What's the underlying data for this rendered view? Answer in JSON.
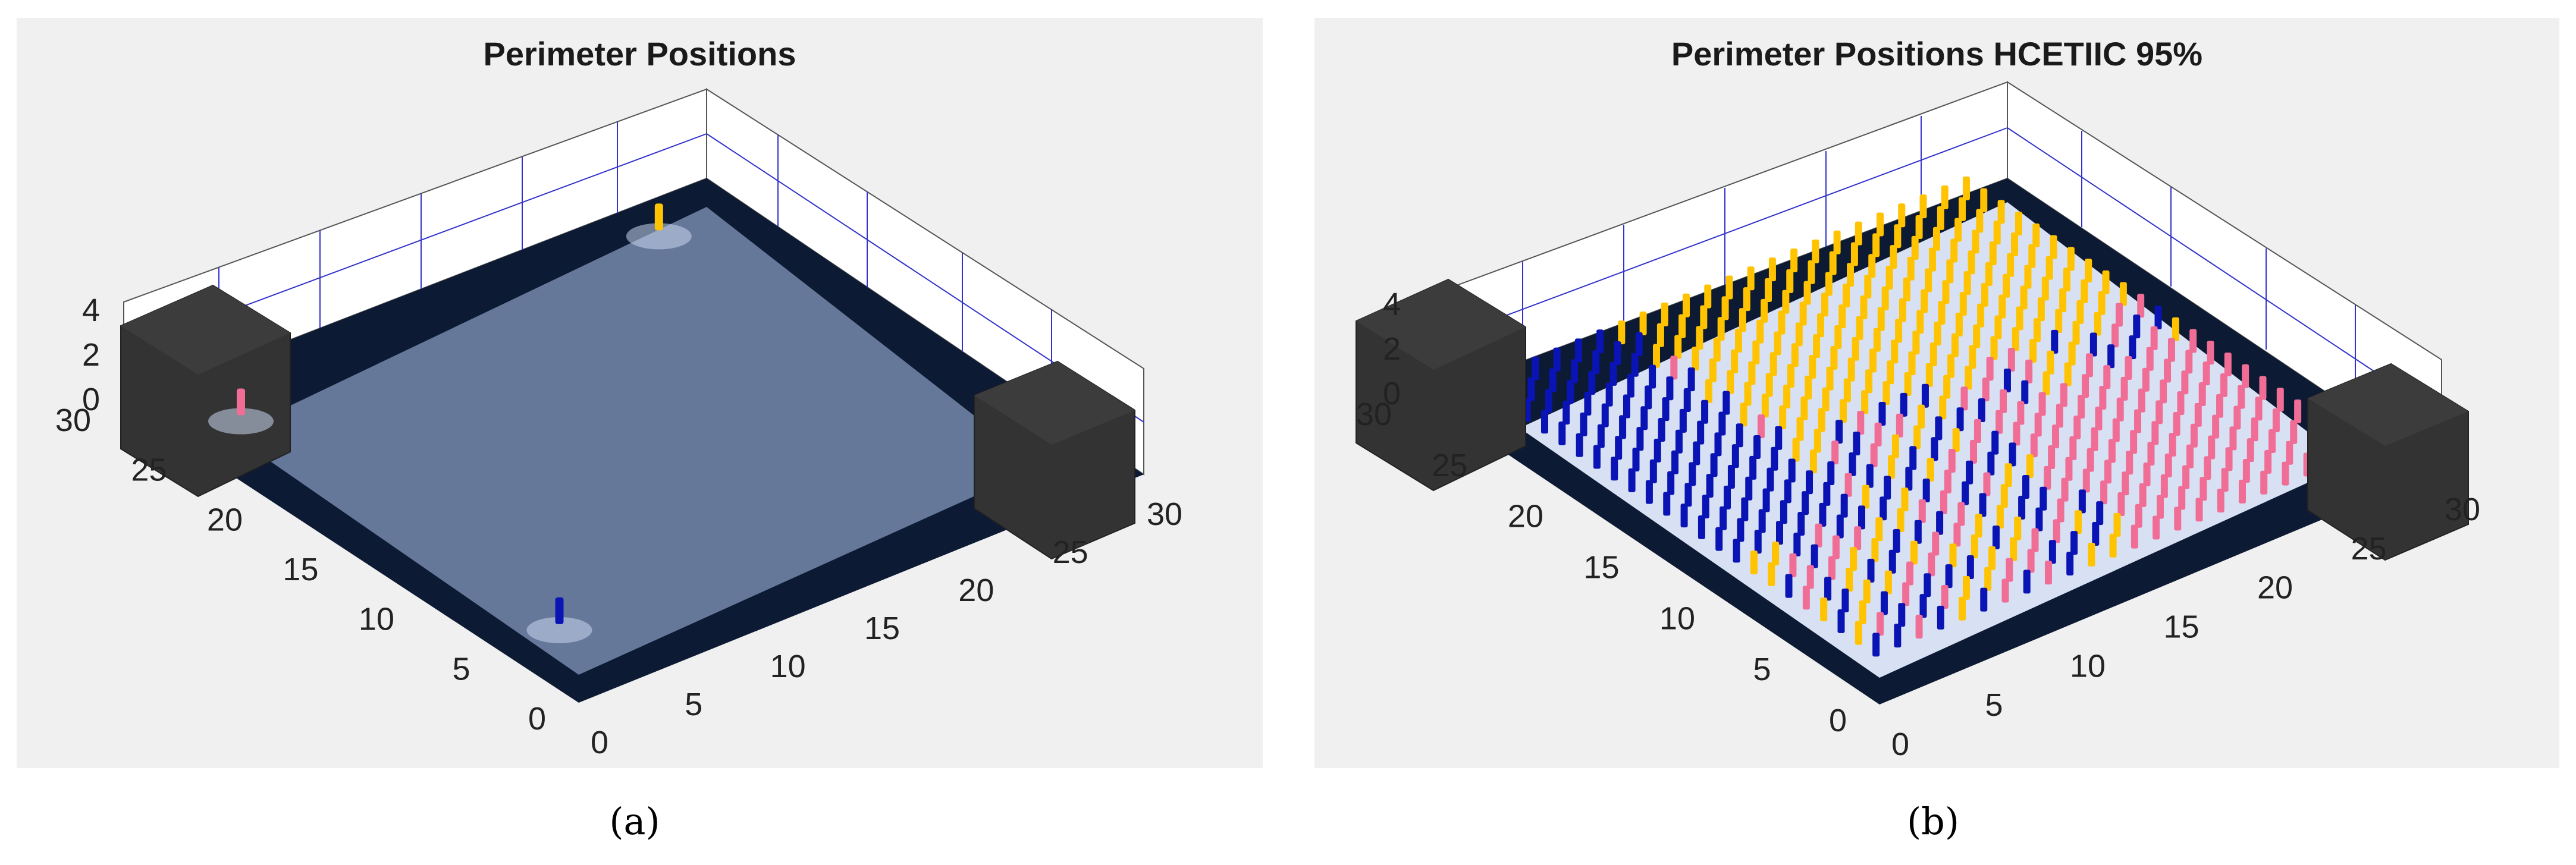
{
  "panels": [
    {
      "id": "a",
      "title": "Perimeter Positions",
      "caption": "(a)"
    },
    {
      "id": "b",
      "title": "Perimeter Positions HCETIIC 95%",
      "caption": "(b)"
    }
  ],
  "chart_data": [
    {
      "type": "scatter",
      "view": "3d",
      "title": "Perimeter Positions",
      "x_ticks": [
        "0",
        "5",
        "10",
        "15",
        "20",
        "25",
        "30"
      ],
      "y_ticks": [
        "0",
        "5",
        "10",
        "15",
        "20",
        "25",
        "30"
      ],
      "z_ticks": [
        "0",
        "2",
        "4"
      ],
      "xlim": [
        0,
        30
      ],
      "ylim": [
        0,
        30
      ],
      "zlim": [
        0,
        4
      ],
      "grid": true,
      "series": [
        {
          "color": "#f06e96",
          "points": [
            [
              3,
              26,
              1
            ]
          ]
        },
        {
          "color": "#ffc300",
          "points": [
            [
              26,
              27,
              1
            ]
          ]
        },
        {
          "color": "#0a14b4",
          "points": [
            [
              3,
              5,
              1
            ]
          ]
        }
      ]
    },
    {
      "type": "scatter",
      "view": "3d",
      "title": "Perimeter Positions HCETIIC 95%",
      "x_ticks": [
        "0",
        "5",
        "10",
        "15",
        "20",
        "25",
        "30"
      ],
      "y_ticks": [
        "0",
        "5",
        "10",
        "15",
        "20",
        "25",
        "30"
      ],
      "z_ticks": [
        "0",
        "2",
        "4"
      ],
      "xlim": [
        0,
        30
      ],
      "ylim": [
        0,
        30
      ],
      "zlim": [
        0,
        4
      ],
      "grid": true,
      "series": [
        {
          "color": "#ffc300",
          "region": "upper-right triangle"
        },
        {
          "color": "#0a14b4",
          "region": "mixed band"
        },
        {
          "color": "#f06e96",
          "region": "lower-right band"
        }
      ]
    }
  ]
}
